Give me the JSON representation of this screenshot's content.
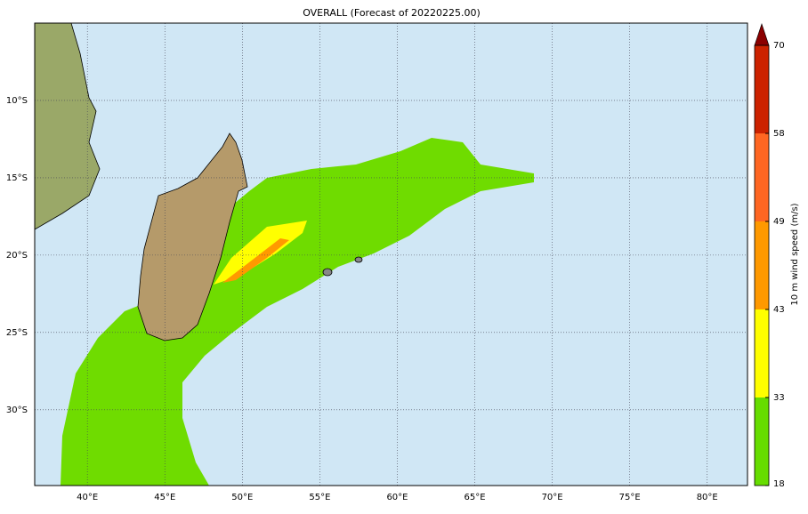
{
  "map": {
    "title": "OVERALL (Forecast of 20220225.00)",
    "lonlim": [
      36.6,
      82.6
    ],
    "latlim": [
      -5,
      -34.9
    ],
    "lon_ticks": [
      {
        "value": 40,
        "label": "40°E"
      },
      {
        "value": 45,
        "label": "45°E"
      },
      {
        "value": 50,
        "label": "50°E"
      },
      {
        "value": 55,
        "label": "55°E"
      },
      {
        "value": 60,
        "label": "60°E"
      },
      {
        "value": 65,
        "label": "65°E"
      },
      {
        "value": 70,
        "label": "70°E"
      },
      {
        "value": 75,
        "label": "75°E"
      },
      {
        "value": 80,
        "label": "80°E"
      }
    ],
    "lat_ticks": [
      {
        "value": -10,
        "label": "10°S"
      },
      {
        "value": -15,
        "label": "15°S"
      },
      {
        "value": -20,
        "label": "20°S"
      },
      {
        "value": -25,
        "label": "25°S"
      },
      {
        "value": -30,
        "label": "30°S"
      }
    ],
    "colorbar": {
      "label": "10 m wind speed (m/s)",
      "levels": [
        18,
        33,
        43,
        49,
        58,
        70
      ],
      "colors": [
        "#66dd00",
        "#ffff00",
        "#ff9900",
        "#ff6622",
        "#cc2200"
      ],
      "extend_color": "#8b0000"
    }
  }
}
